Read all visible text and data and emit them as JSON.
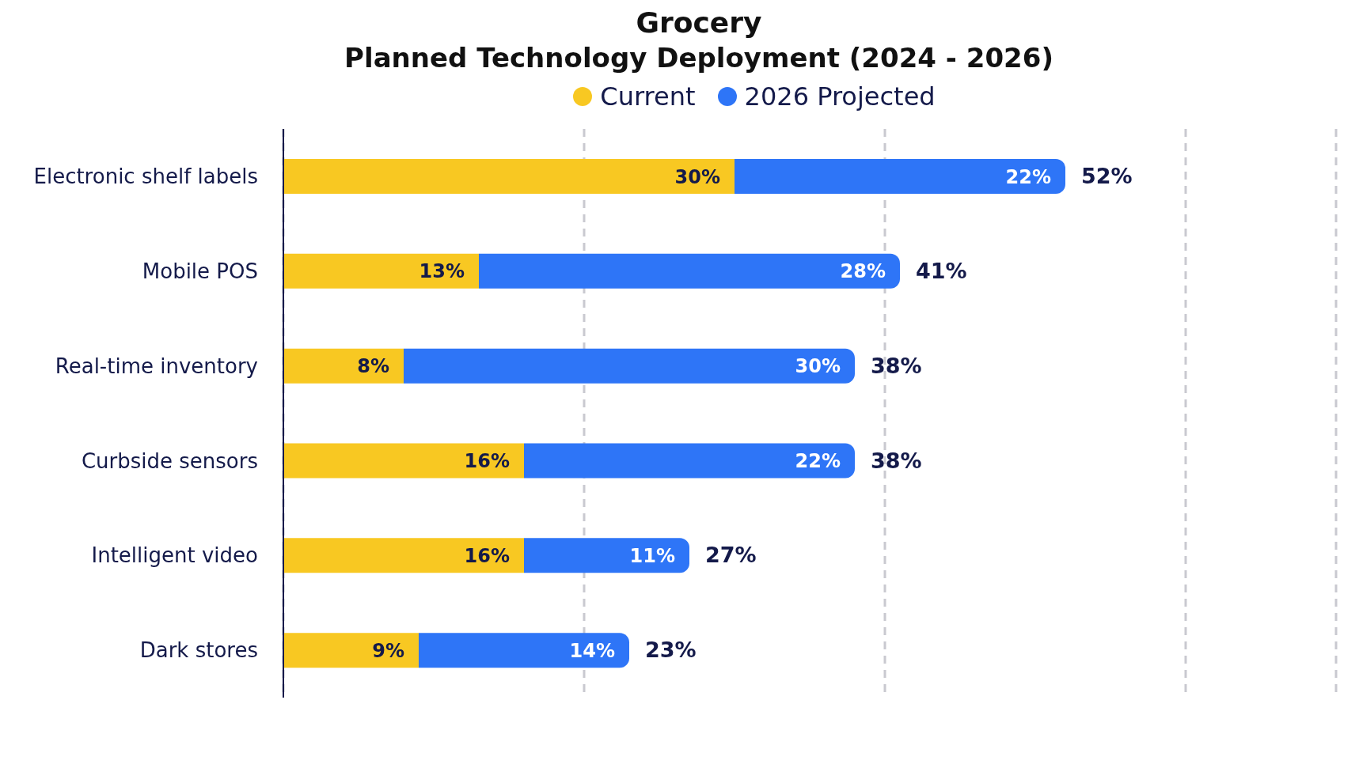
{
  "chart_data": {
    "type": "bar",
    "orientation": "horizontal",
    "stacked": true,
    "title": "Grocery",
    "subtitle": "Planned Technology Deployment (2024 - 2026)",
    "categories": [
      "Electronic shelf labels",
      "Mobile POS",
      "Real-time inventory",
      "Curbside sensors",
      "Intelligent video",
      "Dark stores"
    ],
    "series": [
      {
        "name": "Current",
        "color": "#f8c822",
        "values": [
          30,
          13,
          8,
          16,
          16,
          9
        ],
        "value_labels": [
          "30%",
          "13%",
          "8%",
          "16%",
          "16%",
          "9%"
        ]
      },
      {
        "name": "2026 Projected",
        "color": "#2e75f7",
        "values": [
          22,
          28,
          30,
          22,
          11,
          14
        ],
        "value_labels": [
          "22%",
          "28%",
          "30%",
          "22%",
          "11%",
          "14%"
        ]
      }
    ],
    "totals": [
      "52%",
      "41%",
      "38%",
      "38%",
      "27%",
      "23%"
    ],
    "xlim": [
      0,
      70
    ],
    "xticks": [
      {
        "value": 20,
        "label": null
      },
      {
        "value": 40,
        "label": null
      },
      {
        "value": 60,
        "label": null
      }
    ],
    "tick_labels": "y",
    "grid": "x",
    "legend": "top"
  }
}
